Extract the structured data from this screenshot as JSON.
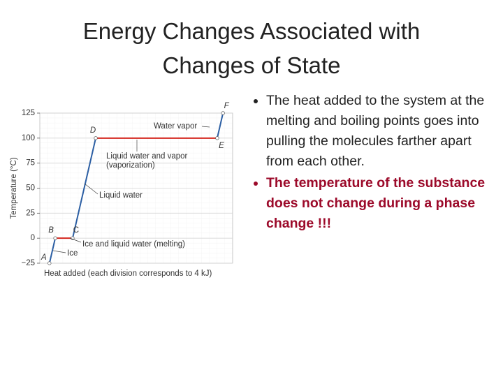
{
  "title": "Energy Changes Associated with Changes of State",
  "bullets": [
    {
      "text": "The heat added to the system at the melting and boiling points goes into pulling the molecules farther apart from each other.",
      "color": "#222222",
      "bold": false
    },
    {
      "text": "The temperature of the substance does not change during a phase change !!!",
      "color": "#9c0a2a",
      "bold": true
    }
  ],
  "chart_data": {
    "type": "line",
    "y_label": "Temperature (°C)",
    "x_label": "Heat added (each division corresponds to 4 kJ)",
    "x": [
      5,
      8,
      17,
      29,
      92,
      95
    ],
    "xlim": [
      0,
      100
    ],
    "series": [
      {
        "values": [
          -25,
          0,
          0,
          100,
          100,
          125
        ]
      }
    ],
    "point_labels": [
      "A",
      "B",
      "C",
      "D",
      "E",
      "F"
    ],
    "segment_colors": [
      "#2b5ea3",
      "#d4261e",
      "#2b5ea3",
      "#d4261e",
      "#2b5ea3"
    ],
    "ylim": [
      -25,
      125
    ],
    "yticks": [
      {
        "value": -25,
        "label": "−25"
      },
      0,
      25,
      50,
      75,
      100,
      125
    ],
    "grid": true,
    "annotations": [
      {
        "lines": [
          "Water vapor"
        ]
      },
      {
        "lines": [
          "Liquid water and vapor",
          "(vaporization)"
        ]
      },
      {
        "lines": [
          "Liquid water"
        ]
      },
      {
        "lines": [
          "Ice and liquid water (melting)"
        ]
      },
      {
        "lines": [
          "Ice"
        ]
      }
    ]
  }
}
